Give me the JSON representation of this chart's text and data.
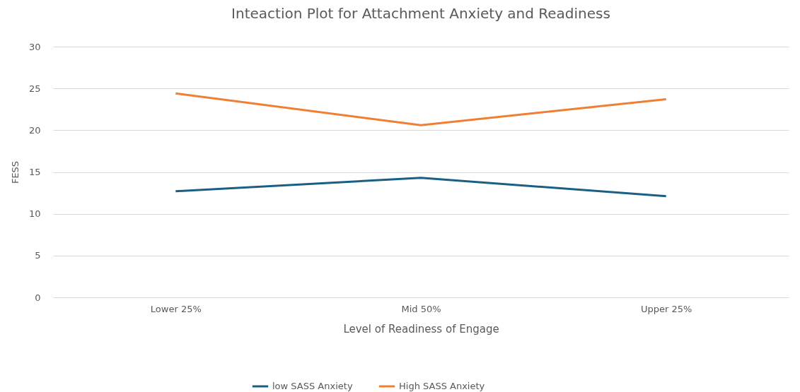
{
  "chart_data": {
    "type": "line",
    "title": "Inteaction Plot for Attachment Anxiety and Readiness",
    "xlabel": "Level of Readiness of Engage",
    "ylabel": "FESS",
    "categories": [
      "Lower 25%",
      "Mid 50%",
      "Upper 25%"
    ],
    "series": [
      {
        "name": "low SASS Anxiety",
        "color": "#1b5f85",
        "values": [
          12.7,
          14.3,
          12.1
        ]
      },
      {
        "name": "High SASS Anxiety",
        "color": "#f07f33",
        "values": [
          24.4,
          20.6,
          23.7
        ]
      }
    ],
    "ylim": [
      0,
      30
    ],
    "yticks": [
      0,
      5,
      10,
      15,
      20,
      25,
      30
    ],
    "grid": "y",
    "legend": "bottom",
    "marker": "none"
  }
}
